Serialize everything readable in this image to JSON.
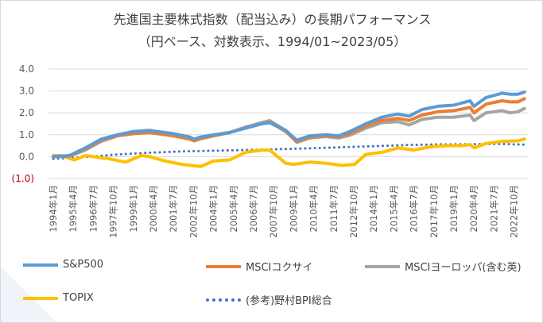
{
  "chart_data": {
    "type": "line",
    "title": "先進国主要株式指数（配当込み）の長期パフォーマンス",
    "subtitle": "（円ベース、対数表示、1994/01~2023/05）",
    "y_ticks": [
      "4.0",
      "3.0",
      "2.0",
      "1.0",
      "0.0",
      "(1.0)"
    ],
    "ylim": [
      -1.0,
      4.0
    ],
    "x_ticks": [
      "1994年1月",
      "1995年4月",
      "1996年7月",
      "1997年10月",
      "1999年1月",
      "2000年4月",
      "2001年7月",
      "2002年10月",
      "2004年1月",
      "2005年4月",
      "2006年7月",
      "2007年10月",
      "2009年1月",
      "2010年4月",
      "2011年7月",
      "2012年10月",
      "2014年1月",
      "2015年4月",
      "2016年7月",
      "2017年10月",
      "2019年1月",
      "2020年4月",
      "2021年7月",
      "2022年10月"
    ],
    "grid": true,
    "legend_position": "bottom",
    "colors": {
      "negative_tick": "#c00000",
      "axis_text": "#595959",
      "grid": "#d9d9d9"
    },
    "series": [
      {
        "name": "S&P500",
        "color": "#5b9bd5",
        "style": "solid",
        "x": [
          1994.0,
          1995.0,
          1996.0,
          1997.0,
          1998.0,
          1999.0,
          2000.0,
          2000.5,
          2001.5,
          2002.5,
          2002.8,
          2003.2,
          2004.0,
          2005.0,
          2006.0,
          2007.0,
          2007.5,
          2008.5,
          2009.2,
          2010.0,
          2011.0,
          2011.8,
          2012.5,
          2013.5,
          2014.5,
          2015.5,
          2016.2,
          2017.0,
          2018.0,
          2019.0,
          2020.0,
          2020.25,
          2021.0,
          2022.0,
          2022.5,
          2023.0,
          2023.4
        ],
        "values": [
          0.0,
          0.05,
          0.4,
          0.8,
          1.0,
          1.15,
          1.2,
          1.15,
          1.05,
          0.9,
          0.8,
          0.9,
          1.0,
          1.1,
          1.3,
          1.5,
          1.55,
          1.2,
          0.75,
          0.95,
          1.0,
          0.95,
          1.15,
          1.5,
          1.8,
          1.95,
          1.85,
          2.15,
          2.3,
          2.35,
          2.55,
          2.3,
          2.7,
          2.9,
          2.85,
          2.85,
          2.95
        ]
      },
      {
        "name": "MSCIコクサイ",
        "color": "#ed7d31",
        "style": "solid",
        "x": [
          1994.0,
          1995.0,
          1996.0,
          1997.0,
          1998.0,
          1999.0,
          2000.0,
          2000.5,
          2001.5,
          2002.5,
          2002.8,
          2003.2,
          2004.0,
          2005.0,
          2006.0,
          2007.0,
          2007.5,
          2008.5,
          2009.2,
          2010.0,
          2011.0,
          2011.8,
          2012.5,
          2013.5,
          2014.5,
          2015.5,
          2016.2,
          2017.0,
          2018.0,
          2019.0,
          2020.0,
          2020.25,
          2021.0,
          2022.0,
          2022.5,
          2023.0,
          2023.4
        ],
        "values": [
          0.0,
          0.03,
          0.35,
          0.75,
          0.95,
          1.05,
          1.1,
          1.05,
          0.95,
          0.8,
          0.72,
          0.82,
          0.95,
          1.1,
          1.3,
          1.5,
          1.58,
          1.15,
          0.68,
          0.88,
          0.95,
          0.9,
          1.05,
          1.4,
          1.65,
          1.75,
          1.65,
          1.9,
          2.05,
          2.1,
          2.25,
          2.0,
          2.4,
          2.55,
          2.5,
          2.5,
          2.65
        ]
      },
      {
        "name": "MSCIヨーロッパ(含む英)",
        "color": "#a5a5a5",
        "style": "solid",
        "x": [
          1994.0,
          1995.0,
          1996.0,
          1997.0,
          1998.0,
          1999.0,
          2000.0,
          2000.5,
          2001.5,
          2002.5,
          2002.8,
          2003.2,
          2004.0,
          2005.0,
          2006.0,
          2007.0,
          2007.5,
          2008.5,
          2009.2,
          2010.0,
          2011.0,
          2011.8,
          2012.5,
          2013.5,
          2014.5,
          2015.5,
          2016.2,
          2017.0,
          2018.0,
          2019.0,
          2020.0,
          2020.25,
          2021.0,
          2022.0,
          2022.5,
          2023.0,
          2023.4
        ],
        "values": [
          0.0,
          0.02,
          0.3,
          0.7,
          0.95,
          1.05,
          1.1,
          1.05,
          0.95,
          0.82,
          0.75,
          0.85,
          0.95,
          1.1,
          1.35,
          1.55,
          1.65,
          1.2,
          0.65,
          0.85,
          0.92,
          0.85,
          0.98,
          1.3,
          1.55,
          1.6,
          1.45,
          1.7,
          1.8,
          1.8,
          1.9,
          1.65,
          2.0,
          2.1,
          2.0,
          2.05,
          2.2
        ]
      },
      {
        "name": "TOPIX",
        "color": "#ffc000",
        "style": "solid",
        "x": [
          1994.0,
          1994.5,
          1995.3,
          1996.0,
          1996.5,
          1997.5,
          1998.5,
          1999.5,
          2000.0,
          2001.0,
          2002.0,
          2003.2,
          2004.0,
          2005.0,
          2006.0,
          2007.0,
          2007.5,
          2008.5,
          2009.0,
          2010.0,
          2011.0,
          2012.0,
          2012.8,
          2013.5,
          2014.5,
          2015.5,
          2016.5,
          2017.5,
          2018.5,
          2019.5,
          2020.0,
          2020.25,
          2021.0,
          2022.0,
          2023.0,
          2023.4
        ],
        "values": [
          0.05,
          0.05,
          -0.15,
          0.05,
          0.0,
          -0.1,
          -0.25,
          0.05,
          0.0,
          -0.2,
          -0.35,
          -0.45,
          -0.2,
          -0.15,
          0.2,
          0.3,
          0.3,
          -0.3,
          -0.35,
          -0.25,
          -0.3,
          -0.4,
          -0.35,
          0.1,
          0.2,
          0.4,
          0.3,
          0.45,
          0.5,
          0.5,
          0.55,
          0.4,
          0.6,
          0.7,
          0.72,
          0.8
        ]
      },
      {
        "name": "(参考)野村BPI総合",
        "color": "#4472c4",
        "style": "dotted",
        "x": [
          1994.0,
          1996.0,
          1998.0,
          2000.0,
          2002.0,
          2004.0,
          2006.0,
          2008.0,
          2010.0,
          2012.0,
          2014.0,
          2016.0,
          2018.0,
          2020.0,
          2022.0,
          2023.4
        ],
        "values": [
          -0.1,
          -0.02,
          0.1,
          0.18,
          0.24,
          0.27,
          0.3,
          0.34,
          0.38,
          0.43,
          0.48,
          0.53,
          0.56,
          0.57,
          0.58,
          0.55
        ]
      }
    ]
  }
}
